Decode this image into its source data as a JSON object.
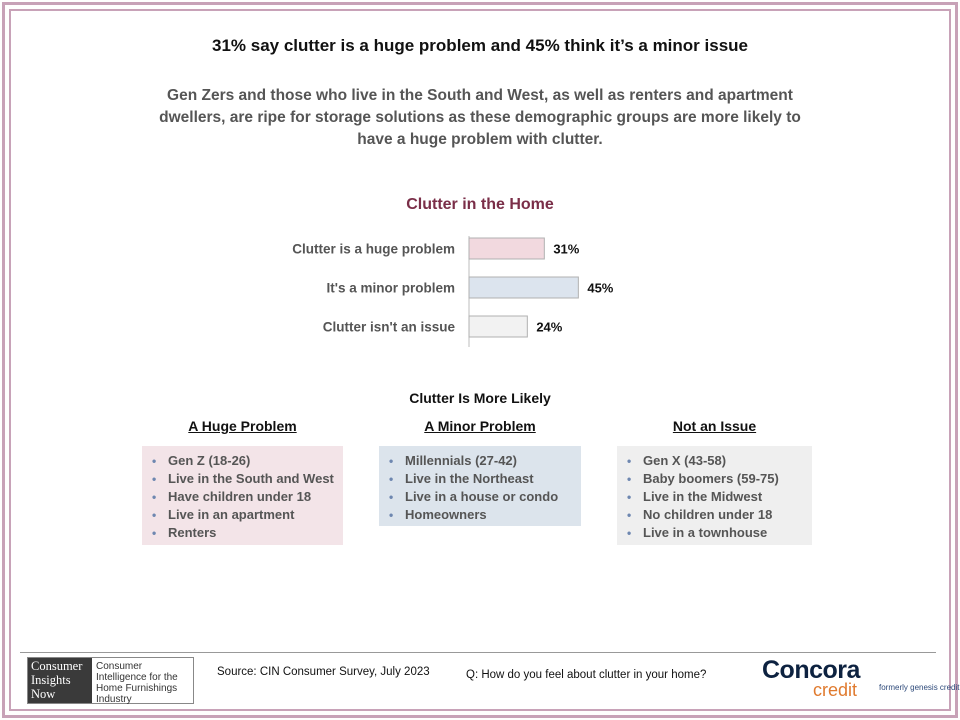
{
  "title": "31% say clutter is a huge problem and 45% think it’s a minor issue",
  "subtitle": "Gen Zers and those who live in the South and West, as well as renters and apartment dwellers, are ripe for storage solutions as these demographic groups are more likely to have a huge problem with clutter.",
  "chart_data": {
    "type": "bar",
    "orientation": "horizontal",
    "title": "Clutter in the Home",
    "categories": [
      "Clutter is a huge problem",
      "It's a minor problem",
      "Clutter isn't an issue"
    ],
    "values": [
      31,
      45,
      24
    ],
    "value_labels": [
      "31%",
      "45%",
      "24%"
    ],
    "colors": [
      "#f2d9df",
      "#dce4ee",
      "#f2f2f2"
    ],
    "border_color": "#b0b0b0",
    "xlim": [
      0,
      100
    ],
    "grid": false
  },
  "more_likely": {
    "heading": "Clutter Is More Likely",
    "groups": [
      {
        "title": "A Huge Problem",
        "items": [
          "Gen Z (18-26)",
          "Live in the South and West",
          "Have children under 18",
          "Live in an apartment",
          "Renters"
        ]
      },
      {
        "title": "A Minor Problem",
        "items": [
          "Millennials (27-42)",
          "Live in the Northeast",
          "Live in a house or condo",
          "Homeowners"
        ]
      },
      {
        "title": "Not an Issue",
        "items": [
          "Gen X (43-58)",
          "Baby boomers (59-75)",
          "Live in the Midwest",
          "No children under 18",
          "Live in a townhouse"
        ]
      }
    ]
  },
  "footer": {
    "logo_dark_lines": [
      "Consumer",
      "Insights",
      "Now"
    ],
    "logo_light_text": "Consumer Intelligence for the Home Furnishings Industry",
    "source": "Source: CIN Consumer Survey, July 2023",
    "question": "Q: How do you feel about clutter in your home?",
    "brand_name": "Concora",
    "brand_sub": "credit",
    "brand_formerly": "formerly genesis credit"
  }
}
